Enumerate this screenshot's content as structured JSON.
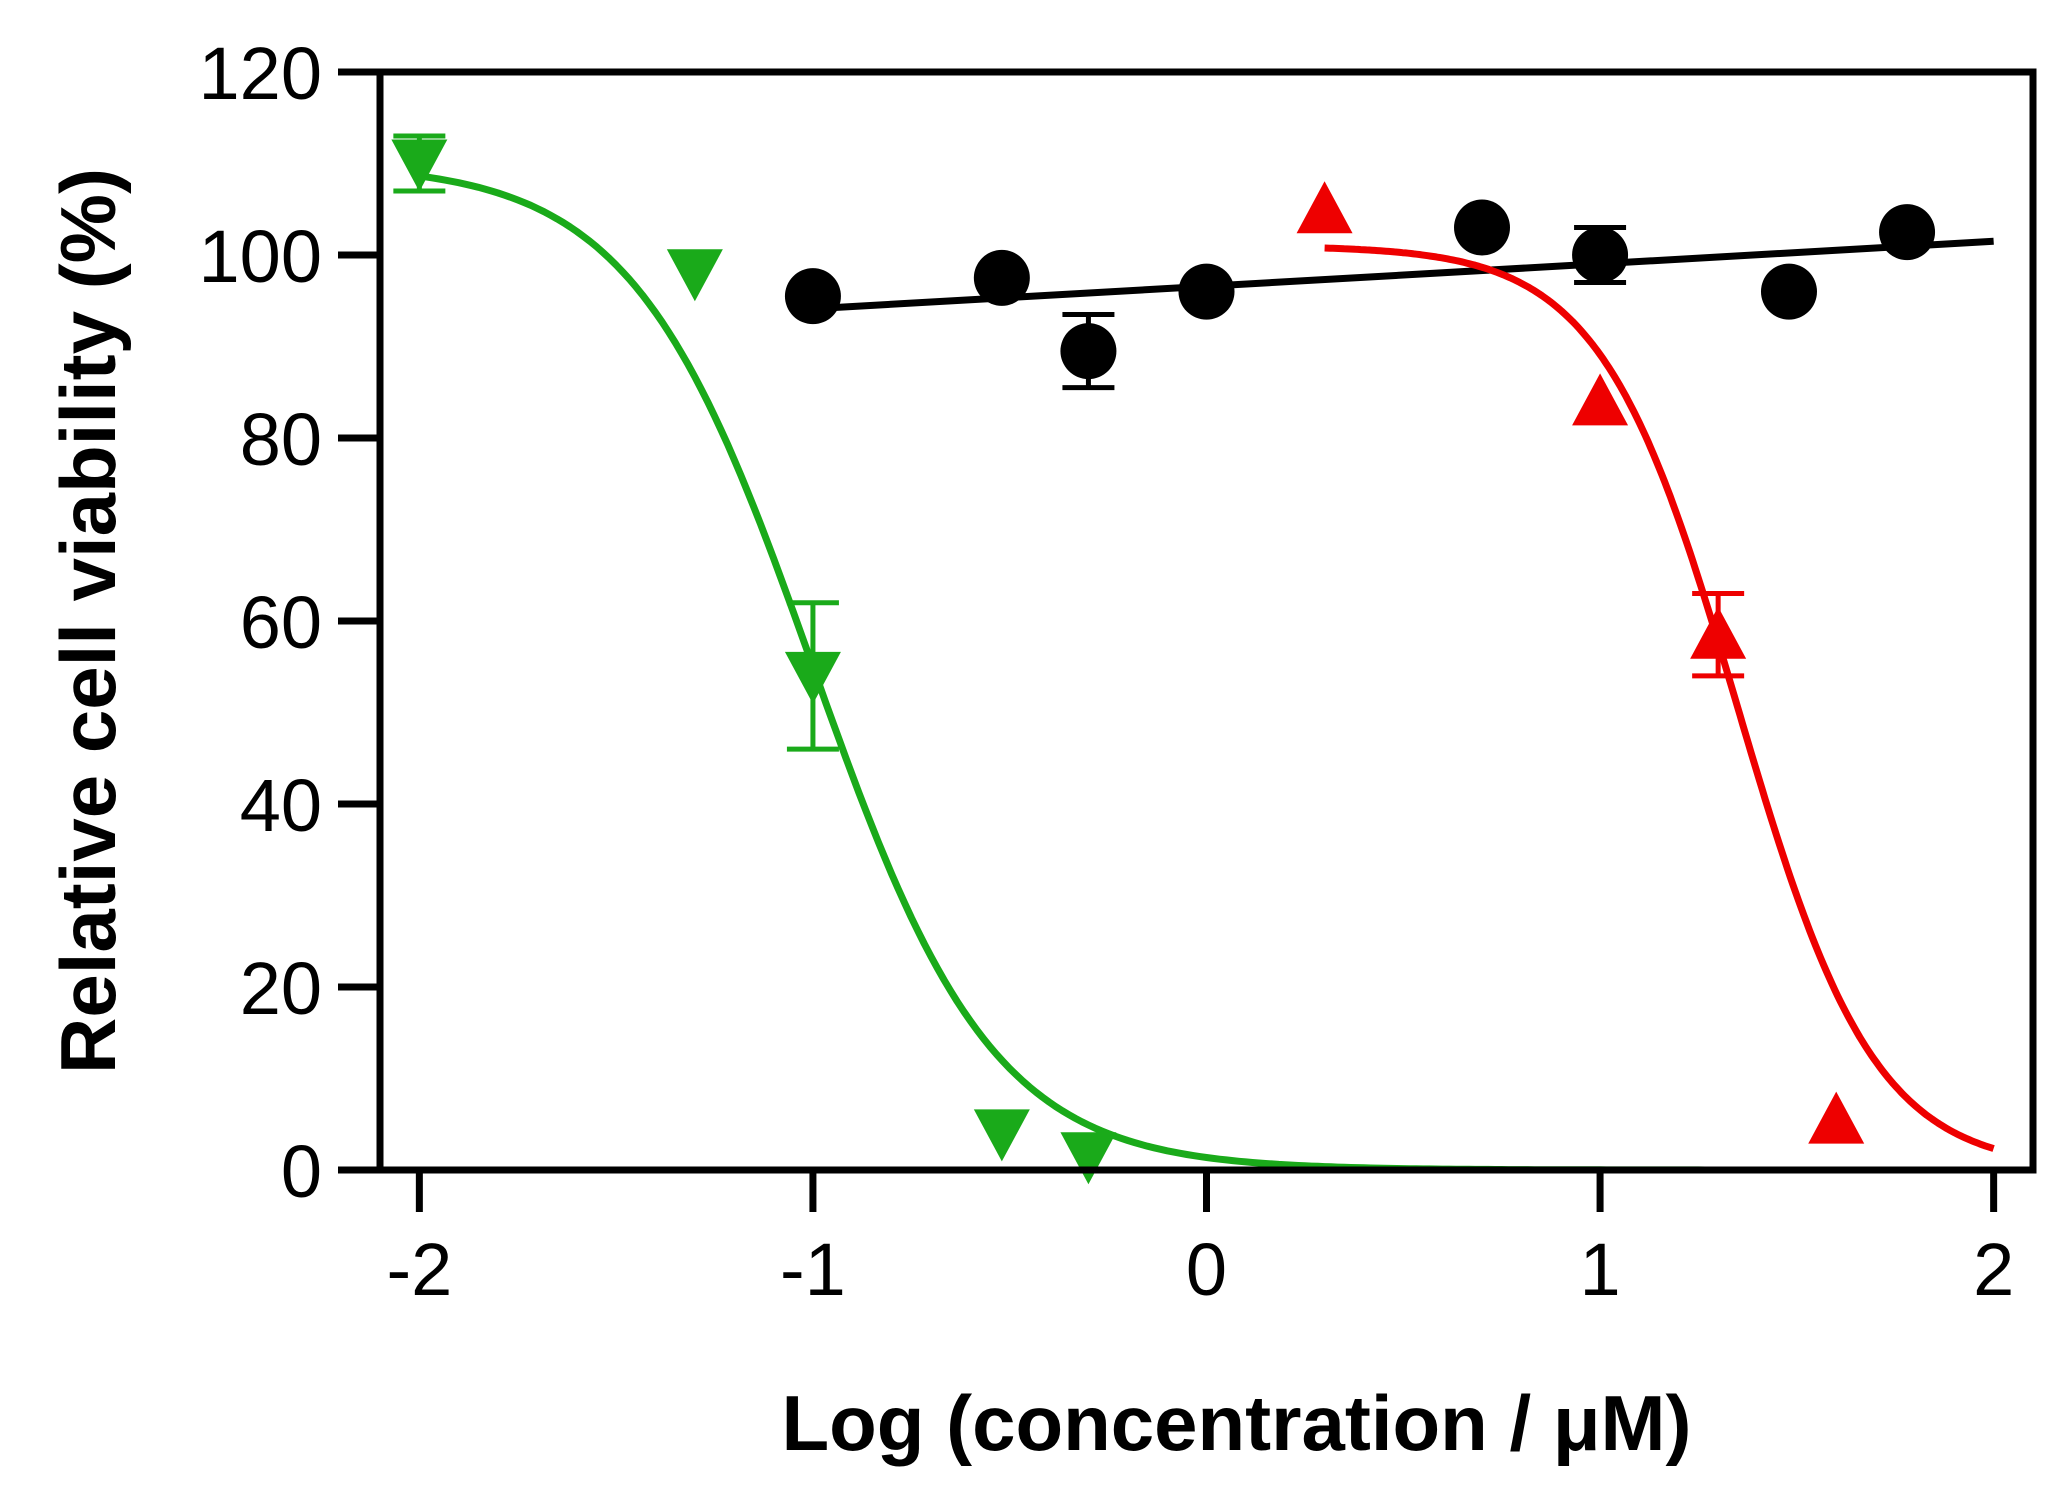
{
  "chart_data": {
    "type": "scatter",
    "title": "",
    "xlabel": "Log (concentration / μM)",
    "ylabel": "Relative cell viability (%)",
    "xlim": [
      -2.1,
      2.1
    ],
    "ylim": [
      0,
      120
    ],
    "x_ticks": [
      -2,
      -1,
      0,
      1,
      2
    ],
    "x_tick_labels": [
      "-2",
      "-1",
      "0",
      "1",
      "2"
    ],
    "y_ticks": [
      0,
      20,
      40,
      60,
      80,
      100,
      120
    ],
    "y_tick_labels": [
      "0",
      "20",
      "40",
      "60",
      "80",
      "100",
      "120"
    ],
    "grid": false,
    "legend": "none",
    "series": [
      {
        "name": "black circles",
        "marker": "circle",
        "color": "#000000",
        "points": [
          {
            "x": -1.0,
            "y": 95.5
          },
          {
            "x": -0.52,
            "y": 97.5
          },
          {
            "x": -0.3,
            "y": 89.5,
            "err": 4
          },
          {
            "x": 0.0,
            "y": 96
          },
          {
            "x": 0.7,
            "y": 103
          },
          {
            "x": 1.0,
            "y": 100,
            "err": 3
          },
          {
            "x": 1.48,
            "y": 96
          },
          {
            "x": 1.78,
            "y": 102.5
          }
        ],
        "fit": {
          "type": "linear",
          "x0": -1.05,
          "y0": 94,
          "x1": 2.0,
          "y1": 101.5
        }
      },
      {
        "name": "green down-triangles",
        "marker": "triangle-down",
        "color": "#1aaa1a",
        "points": [
          {
            "x": -2.0,
            "y": 110,
            "err": 3
          },
          {
            "x": -1.3,
            "y": 98
          },
          {
            "x": -1.0,
            "y": 54,
            "err": 8
          },
          {
            "x": -0.52,
            "y": 4
          },
          {
            "x": -0.3,
            "y": 1.5
          }
        ],
        "fit": {
          "type": "sigmoid",
          "top": 110,
          "bottom": 0,
          "logIC50": -1.0,
          "hill": -1.9,
          "x_from": -2.0,
          "x_to": 2.0
        }
      },
      {
        "name": "red up-triangles",
        "marker": "triangle-up",
        "color": "#ee0000",
        "points": [
          {
            "x": 0.3,
            "y": 105
          },
          {
            "x": 1.0,
            "y": 84
          },
          {
            "x": 1.3,
            "y": 58.5,
            "err": 4.5
          },
          {
            "x": 1.6,
            "y": 5.5
          }
        ],
        "fit": {
          "type": "sigmoid",
          "top": 101,
          "bottom": 0,
          "logIC50": 1.35,
          "hill": -2.5,
          "x_from": 0.3,
          "x_to": 2.0
        }
      }
    ]
  }
}
